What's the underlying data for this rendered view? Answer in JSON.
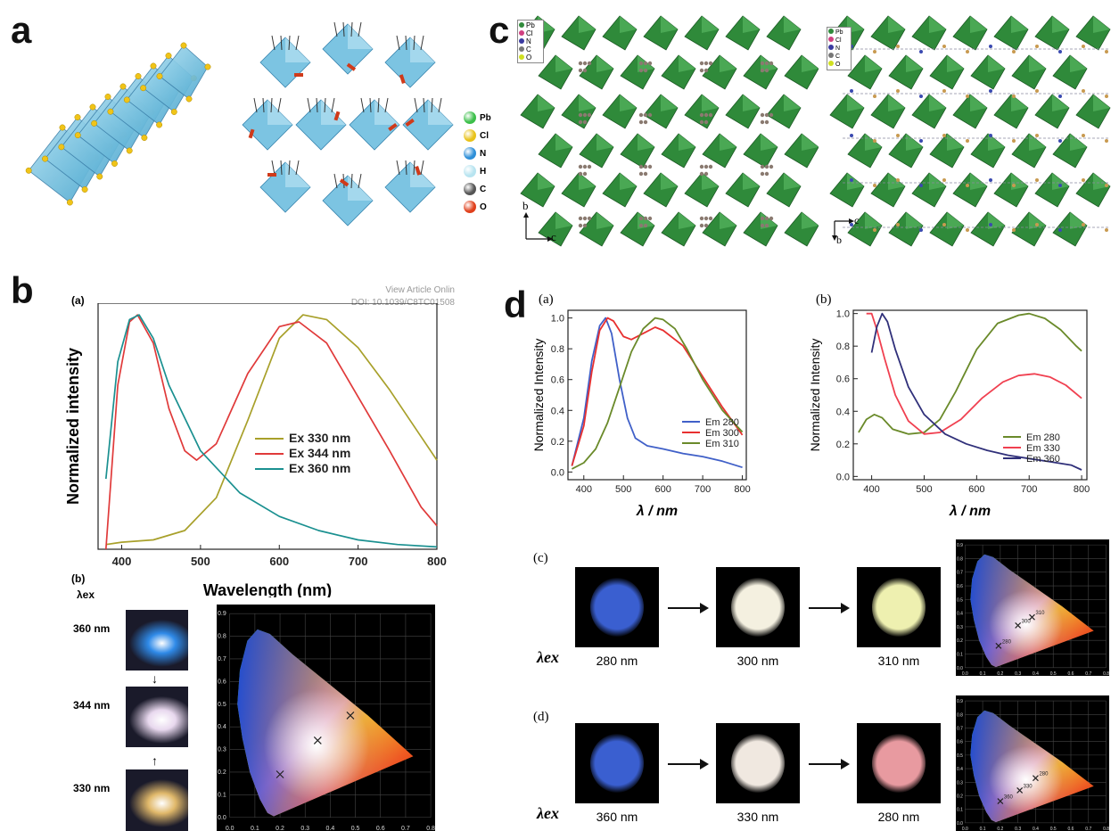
{
  "panels": {
    "a": {
      "letter": "a",
      "legend": [
        {
          "label": "Pb",
          "color": "#3cbf4a"
        },
        {
          "label": "Cl",
          "color": "#e8c21a"
        },
        {
          "label": "N",
          "color": "#2e8fd8"
        },
        {
          "label": "H",
          "color": "#b8e4f0"
        },
        {
          "label": "C",
          "color": "#555555"
        },
        {
          "label": "O",
          "color": "#e0401c"
        }
      ]
    },
    "c": {
      "letter": "c",
      "legend_left": [
        "Pb",
        "Cl",
        "N",
        "C",
        "O"
      ],
      "legend_right": [
        "Pb",
        "Cl",
        "N",
        "C",
        "O"
      ],
      "axis_left": {
        "up": "b",
        "right": "c"
      },
      "axis_right": {
        "up": "c",
        "down": "b"
      }
    },
    "b": {
      "letter": "b",
      "sub_a": "(a)",
      "sub_b": "(b)",
      "watermark_1": "View Article Onlin",
      "watermark_2": "DOI: 10.1039/C8TC01508",
      "lambda_ex": "λex",
      "photos": [
        {
          "label": "360 nm",
          "color": "#2f8ae8"
        },
        {
          "label": "344 nm",
          "color": "#e8d8ee"
        },
        {
          "label": "330 nm",
          "color": "#e0b86a"
        }
      ],
      "arrow_down": "↓",
      "arrow_up": "↑"
    },
    "d": {
      "letter": "d",
      "sub_a": "(a)",
      "sub_b": "(b)",
      "sub_c": "(c)",
      "sub_d": "(d)",
      "lambda_ex": "λex",
      "row_c": [
        {
          "label": "280 nm",
          "color": "#3a5fd0"
        },
        {
          "label": "300 nm",
          "color": "#f4f0e0"
        },
        {
          "label": "310 nm",
          "color": "#eef0b0"
        }
      ],
      "row_d": [
        {
          "label": "360 nm",
          "color": "#3a5fd0"
        },
        {
          "label": "330 nm",
          "color": "#f0e8e0"
        },
        {
          "label": "280 nm",
          "color": "#e89aa0"
        }
      ]
    }
  },
  "chart_data": [
    {
      "id": "b-spectrum",
      "type": "line",
      "xlabel": "Wavelength (nm)",
      "ylabel": "Normalized intensity",
      "xlim": [
        370,
        800
      ],
      "ylim": [
        0,
        1.05
      ],
      "xticks": [
        400,
        500,
        600,
        700,
        800
      ],
      "legend_position": "right",
      "series": [
        {
          "name": "Ex 330 nm",
          "color": "#a8a02a",
          "x": [
            380,
            400,
            440,
            480,
            520,
            560,
            600,
            630,
            660,
            700,
            740,
            780,
            800
          ],
          "y": [
            0.02,
            0.03,
            0.04,
            0.08,
            0.22,
            0.55,
            0.9,
            1.0,
            0.98,
            0.86,
            0.68,
            0.48,
            0.38
          ]
        },
        {
          "name": "Ex 344 nm",
          "color": "#e03a3a",
          "x": [
            380,
            395,
            410,
            420,
            440,
            460,
            480,
            495,
            520,
            560,
            600,
            625,
            660,
            700,
            740,
            780,
            800
          ],
          "y": [
            0.0,
            0.7,
            0.97,
            1.0,
            0.88,
            0.6,
            0.42,
            0.38,
            0.45,
            0.75,
            0.95,
            0.97,
            0.88,
            0.65,
            0.42,
            0.18,
            0.1
          ]
        },
        {
          "name": "Ex 360 nm",
          "color": "#1a9090",
          "x": [
            380,
            395,
            410,
            422,
            440,
            460,
            500,
            550,
            600,
            650,
            700,
            750,
            800
          ],
          "y": [
            0.3,
            0.8,
            0.98,
            1.0,
            0.9,
            0.7,
            0.42,
            0.24,
            0.14,
            0.08,
            0.04,
            0.02,
            0.01
          ]
        }
      ]
    },
    {
      "id": "d-a",
      "type": "line",
      "xlabel": "λ / nm",
      "ylabel": "Normalized Intensity",
      "xlim": [
        360,
        810
      ],
      "ylim": [
        -0.05,
        1.05
      ],
      "xticks": [
        400,
        500,
        600,
        700,
        800
      ],
      "yticks": [
        0.0,
        0.2,
        0.4,
        0.6,
        0.8,
        1.0
      ],
      "legend_position": "right",
      "series": [
        {
          "name": "Em 280",
          "color": "#4060c8",
          "x": [
            370,
            400,
            420,
            440,
            455,
            470,
            490,
            510,
            530,
            560,
            600,
            650,
            700,
            750,
            800
          ],
          "y": [
            0.04,
            0.35,
            0.72,
            0.95,
            1.0,
            0.9,
            0.6,
            0.35,
            0.22,
            0.17,
            0.15,
            0.12,
            0.1,
            0.07,
            0.03
          ]
        },
        {
          "name": "Em 300",
          "color": "#e83030",
          "x": [
            370,
            400,
            420,
            440,
            460,
            475,
            500,
            520,
            550,
            580,
            600,
            650,
            700,
            750,
            800
          ],
          "y": [
            0.04,
            0.3,
            0.65,
            0.92,
            1.0,
            0.98,
            0.88,
            0.86,
            0.9,
            0.94,
            0.92,
            0.82,
            0.62,
            0.42,
            0.24
          ]
        },
        {
          "name": "Em 310",
          "color": "#6a8a2a",
          "x": [
            370,
            400,
            430,
            460,
            490,
            520,
            550,
            580,
            600,
            630,
            660,
            700,
            750,
            800
          ],
          "y": [
            0.02,
            0.06,
            0.15,
            0.32,
            0.55,
            0.78,
            0.93,
            1.0,
            0.99,
            0.93,
            0.8,
            0.6,
            0.4,
            0.26
          ]
        }
      ]
    },
    {
      "id": "d-b",
      "type": "line",
      "xlabel": "λ / nm",
      "ylabel": "Normalized Intensity",
      "xlim": [
        365,
        810
      ],
      "ylim": [
        -0.02,
        1.02
      ],
      "xticks": [
        400,
        500,
        600,
        700,
        800
      ],
      "yticks": [
        0.0,
        0.2,
        0.4,
        0.6,
        0.8,
        1.0
      ],
      "legend_position": "right",
      "series": [
        {
          "name": "Em 280",
          "color": "#6a8a2a",
          "x": [
            375,
            390,
            405,
            420,
            440,
            470,
            500,
            530,
            560,
            600,
            640,
            680,
            700,
            730,
            760,
            790,
            800
          ],
          "y": [
            0.27,
            0.35,
            0.38,
            0.36,
            0.29,
            0.26,
            0.27,
            0.35,
            0.52,
            0.78,
            0.94,
            0.99,
            1.0,
            0.97,
            0.9,
            0.8,
            0.77
          ]
        },
        {
          "name": "Em 330",
          "color": "#f04050",
          "x": [
            390,
            400,
            410,
            425,
            445,
            470,
            500,
            530,
            570,
            610,
            650,
            680,
            710,
            740,
            770,
            800
          ],
          "y": [
            1.0,
            1.0,
            0.9,
            0.72,
            0.5,
            0.34,
            0.26,
            0.27,
            0.35,
            0.48,
            0.58,
            0.62,
            0.63,
            0.61,
            0.56,
            0.48
          ]
        },
        {
          "name": "Em 360",
          "color": "#30307a",
          "x": [
            400,
            410,
            420,
            430,
            445,
            470,
            500,
            540,
            580,
            620,
            660,
            700,
            740,
            780,
            800
          ],
          "y": [
            0.76,
            0.92,
            1.0,
            0.95,
            0.78,
            0.55,
            0.38,
            0.26,
            0.2,
            0.16,
            0.13,
            0.11,
            0.09,
            0.07,
            0.04
          ]
        }
      ]
    },
    {
      "id": "b-cie",
      "type": "scatter",
      "xticks": [
        0.0,
        0.1,
        0.2,
        0.3,
        0.4,
        0.5,
        0.6,
        0.7,
        0.8
      ],
      "yticks": [
        0.0,
        0.1,
        0.2,
        0.3,
        0.4,
        0.5,
        0.6,
        0.7,
        0.8,
        0.9
      ],
      "points": [
        {
          "x": 0.2,
          "y": 0.19
        },
        {
          "x": 0.35,
          "y": 0.34
        },
        {
          "x": 0.48,
          "y": 0.45
        }
      ]
    },
    {
      "id": "d-c-cie",
      "type": "scatter",
      "xticks": [
        0.0,
        0.1,
        0.2,
        0.3,
        0.4,
        0.5,
        0.6,
        0.7,
        0.8
      ],
      "yticks": [
        0.0,
        0.1,
        0.2,
        0.3,
        0.4,
        0.5,
        0.6,
        0.7,
        0.8,
        0.9
      ],
      "points": [
        {
          "x": 0.19,
          "y": 0.16,
          "label": "280"
        },
        {
          "x": 0.3,
          "y": 0.31,
          "label": "300"
        },
        {
          "x": 0.38,
          "y": 0.37,
          "label": "310"
        }
      ]
    },
    {
      "id": "d-d-cie",
      "type": "scatter",
      "xticks": [
        0.0,
        0.1,
        0.2,
        0.3,
        0.4,
        0.5,
        0.6,
        0.7,
        0.8
      ],
      "yticks": [
        0.0,
        0.1,
        0.2,
        0.3,
        0.4,
        0.5,
        0.6,
        0.7,
        0.8,
        0.9
      ],
      "points": [
        {
          "x": 0.2,
          "y": 0.16,
          "label": "360"
        },
        {
          "x": 0.31,
          "y": 0.24,
          "label": "330"
        },
        {
          "x": 0.4,
          "y": 0.33,
          "label": "280"
        }
      ]
    }
  ]
}
